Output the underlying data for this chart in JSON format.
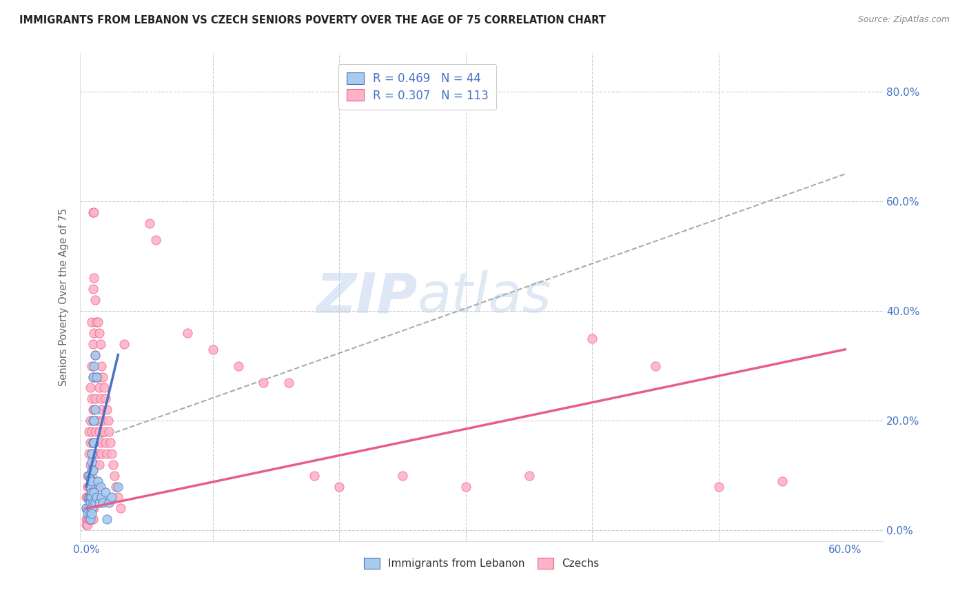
{
  "title": "IMMIGRANTS FROM LEBANON VS CZECH SENIORS POVERTY OVER THE AGE OF 75 CORRELATION CHART",
  "source": "Source: ZipAtlas.com",
  "ylabel": "Seniors Poverty Over the Age of 75",
  "legend_blue_label": "R = 0.469   N = 44",
  "legend_pink_label": "R = 0.307   N = 113",
  "legend_bottom_blue": "Immigrants from Lebanon",
  "legend_bottom_pink": "Czechs",
  "watermark_zip": "ZIP",
  "watermark_atlas": "atlas",
  "blue_color": "#a8caeb",
  "pink_color": "#ffb3c6",
  "blue_line_color": "#4472c4",
  "pink_line_color": "#e85d8a",
  "dashed_line_color": "#aaaaaa",
  "title_color": "#222222",
  "axis_label_color": "#4472c4",
  "tick_label_color": "#4472c4",
  "blue_scatter": [
    [
      0.0,
      4.0
    ],
    [
      0.1,
      3.5
    ],
    [
      0.1,
      3.0
    ],
    [
      0.2,
      5.5
    ],
    [
      0.2,
      6.0
    ],
    [
      0.2,
      10.0
    ],
    [
      0.3,
      9.5
    ],
    [
      0.3,
      8.0
    ],
    [
      0.3,
      6.0
    ],
    [
      0.3,
      5.0
    ],
    [
      0.3,
      3.0
    ],
    [
      0.3,
      2.0
    ],
    [
      0.4,
      14.0
    ],
    [
      0.4,
      12.5
    ],
    [
      0.4,
      11.0
    ],
    [
      0.4,
      9.0
    ],
    [
      0.4,
      7.0
    ],
    [
      0.4,
      6.0
    ],
    [
      0.4,
      4.0
    ],
    [
      0.4,
      3.0
    ],
    [
      0.5,
      28.0
    ],
    [
      0.5,
      20.0
    ],
    [
      0.5,
      16.0
    ],
    [
      0.5,
      11.0
    ],
    [
      0.5,
      5.0
    ],
    [
      0.6,
      30.0
    ],
    [
      0.6,
      20.0
    ],
    [
      0.6,
      16.0
    ],
    [
      0.6,
      7.0
    ],
    [
      0.7,
      32.0
    ],
    [
      0.7,
      22.0
    ],
    [
      0.7,
      5.0
    ],
    [
      0.8,
      28.0
    ],
    [
      0.8,
      6.0
    ],
    [
      0.9,
      9.0
    ],
    [
      1.0,
      5.0
    ],
    [
      1.1,
      8.0
    ],
    [
      1.2,
      6.0
    ],
    [
      1.3,
      5.0
    ],
    [
      1.5,
      7.0
    ],
    [
      1.6,
      2.0
    ],
    [
      1.8,
      5.0
    ],
    [
      2.0,
      6.0
    ],
    [
      2.5,
      8.0
    ]
  ],
  "pink_scatter": [
    [
      0.0,
      6.0
    ],
    [
      0.0,
      4.0
    ],
    [
      0.0,
      2.0
    ],
    [
      0.0,
      1.0
    ],
    [
      0.1,
      10.0
    ],
    [
      0.1,
      8.0
    ],
    [
      0.1,
      6.0
    ],
    [
      0.1,
      4.0
    ],
    [
      0.1,
      2.0
    ],
    [
      0.1,
      1.0
    ],
    [
      0.2,
      18.0
    ],
    [
      0.2,
      14.0
    ],
    [
      0.2,
      10.0
    ],
    [
      0.2,
      8.0
    ],
    [
      0.2,
      6.0
    ],
    [
      0.2,
      4.0
    ],
    [
      0.2,
      2.0
    ],
    [
      0.3,
      26.0
    ],
    [
      0.3,
      20.0
    ],
    [
      0.3,
      16.0
    ],
    [
      0.3,
      12.0
    ],
    [
      0.3,
      8.0
    ],
    [
      0.3,
      6.0
    ],
    [
      0.3,
      4.0
    ],
    [
      0.3,
      2.0
    ],
    [
      0.4,
      38.0
    ],
    [
      0.4,
      30.0
    ],
    [
      0.4,
      24.0
    ],
    [
      0.4,
      18.0
    ],
    [
      0.4,
      14.0
    ],
    [
      0.4,
      10.0
    ],
    [
      0.4,
      6.0
    ],
    [
      0.4,
      4.0
    ],
    [
      0.4,
      2.0
    ],
    [
      0.5,
      58.0
    ],
    [
      0.5,
      44.0
    ],
    [
      0.5,
      34.0
    ],
    [
      0.5,
      28.0
    ],
    [
      0.5,
      22.0
    ],
    [
      0.5,
      16.0
    ],
    [
      0.5,
      12.0
    ],
    [
      0.5,
      8.0
    ],
    [
      0.5,
      4.0
    ],
    [
      0.5,
      2.0
    ],
    [
      0.6,
      58.0
    ],
    [
      0.6,
      46.0
    ],
    [
      0.6,
      36.0
    ],
    [
      0.6,
      28.0
    ],
    [
      0.6,
      22.0
    ],
    [
      0.6,
      16.0
    ],
    [
      0.6,
      12.0
    ],
    [
      0.6,
      8.0
    ],
    [
      0.6,
      4.0
    ],
    [
      0.7,
      42.0
    ],
    [
      0.7,
      32.0
    ],
    [
      0.7,
      24.0
    ],
    [
      0.7,
      18.0
    ],
    [
      0.7,
      12.0
    ],
    [
      0.7,
      6.0
    ],
    [
      0.8,
      38.0
    ],
    [
      0.8,
      28.0
    ],
    [
      0.8,
      20.0
    ],
    [
      0.8,
      14.0
    ],
    [
      0.8,
      8.0
    ],
    [
      0.9,
      38.0
    ],
    [
      0.9,
      28.0
    ],
    [
      0.9,
      20.0
    ],
    [
      0.9,
      14.0
    ],
    [
      0.9,
      8.0
    ],
    [
      1.0,
      36.0
    ],
    [
      1.0,
      26.0
    ],
    [
      1.0,
      18.0
    ],
    [
      1.0,
      12.0
    ],
    [
      1.1,
      34.0
    ],
    [
      1.1,
      24.0
    ],
    [
      1.1,
      16.0
    ],
    [
      1.2,
      30.0
    ],
    [
      1.2,
      22.0
    ],
    [
      1.2,
      14.0
    ],
    [
      1.3,
      28.0
    ],
    [
      1.3,
      20.0
    ],
    [
      1.4,
      26.0
    ],
    [
      1.4,
      18.0
    ],
    [
      1.5,
      24.0
    ],
    [
      1.5,
      16.0
    ],
    [
      1.6,
      22.0
    ],
    [
      1.6,
      14.0
    ],
    [
      1.7,
      20.0
    ],
    [
      1.8,
      18.0
    ],
    [
      1.9,
      16.0
    ],
    [
      2.0,
      14.0
    ],
    [
      2.1,
      12.0
    ],
    [
      2.2,
      10.0
    ],
    [
      2.3,
      8.0
    ],
    [
      2.5,
      6.0
    ],
    [
      2.7,
      4.0
    ],
    [
      3.0,
      34.0
    ],
    [
      5.0,
      56.0
    ],
    [
      5.5,
      53.0
    ],
    [
      8.0,
      36.0
    ],
    [
      10.0,
      33.0
    ],
    [
      12.0,
      30.0
    ],
    [
      14.0,
      27.0
    ],
    [
      16.0,
      27.0
    ],
    [
      18.0,
      10.0
    ],
    [
      20.0,
      8.0
    ],
    [
      25.0,
      10.0
    ],
    [
      30.0,
      8.0
    ],
    [
      35.0,
      10.0
    ],
    [
      40.0,
      35.0
    ],
    [
      45.0,
      30.0
    ],
    [
      50.0,
      8.0
    ],
    [
      55.0,
      9.0
    ]
  ],
  "xlim_min": -0.5,
  "xlim_max": 63.0,
  "ylim_min": -2.0,
  "ylim_max": 87.0,
  "blue_trend_x": [
    0.0,
    2.5
  ],
  "blue_trend_y": [
    8.0,
    32.0
  ],
  "pink_trend_x": [
    0.0,
    60.0
  ],
  "pink_trend_y": [
    4.0,
    33.0
  ],
  "dashed_trend_x": [
    0.0,
    60.0
  ],
  "dashed_trend_y": [
    16.0,
    65.0
  ]
}
